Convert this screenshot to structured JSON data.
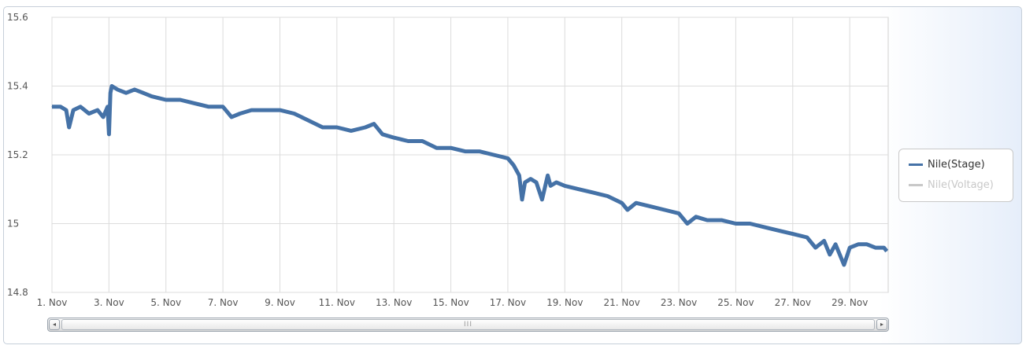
{
  "chart_data": {
    "type": "line",
    "ylim": [
      14.8,
      15.6
    ],
    "y_ticks": [
      "15.6",
      "15.4",
      "15.2",
      "15",
      "14.8"
    ],
    "y_tick_values": [
      15.6,
      15.4,
      15.2,
      15.0,
      14.8
    ],
    "x_ticks": [
      "1. Nov",
      "3. Nov",
      "5. Nov",
      "7. Nov",
      "9. Nov",
      "11. Nov",
      "13. Nov",
      "15. Nov",
      "17. Nov",
      "19. Nov",
      "21. Nov",
      "23. Nov",
      "25. Nov",
      "27. Nov",
      "29. Nov"
    ],
    "x_tick_days": [
      1,
      3,
      5,
      7,
      9,
      11,
      13,
      15,
      17,
      19,
      21,
      23,
      25,
      27,
      29
    ],
    "xlim_days": [
      1,
      30.35
    ],
    "grid": true,
    "legend_position": "right",
    "series": [
      {
        "name": "Nile(Stage)",
        "color": "#4572a7",
        "visible": true,
        "x_days": [
          1.0,
          1.3,
          1.5,
          1.6,
          1.75,
          2.0,
          2.3,
          2.6,
          2.8,
          2.95,
          3.0,
          3.05,
          3.1,
          3.3,
          3.6,
          3.9,
          4.2,
          4.5,
          5.0,
          5.5,
          6.0,
          6.5,
          7.0,
          7.3,
          7.6,
          8.0,
          8.5,
          9.0,
          9.5,
          10.0,
          10.5,
          11.0,
          11.5,
          12.0,
          12.3,
          12.6,
          13.0,
          13.5,
          14.0,
          14.5,
          15.0,
          15.5,
          16.0,
          16.5,
          17.0,
          17.2,
          17.4,
          17.5,
          17.6,
          17.8,
          18.0,
          18.2,
          18.4,
          18.5,
          18.7,
          19.0,
          19.5,
          20.0,
          20.5,
          21.0,
          21.2,
          21.5,
          22.0,
          22.5,
          23.0,
          23.3,
          23.6,
          24.0,
          24.5,
          25.0,
          25.5,
          26.0,
          26.5,
          27.0,
          27.5,
          27.8,
          28.1,
          28.3,
          28.5,
          28.8,
          29.0,
          29.3,
          29.6,
          29.9,
          30.2,
          30.3
        ],
        "values": [
          15.34,
          15.34,
          15.33,
          15.28,
          15.33,
          15.34,
          15.32,
          15.33,
          15.31,
          15.34,
          15.26,
          15.38,
          15.4,
          15.39,
          15.38,
          15.39,
          15.38,
          15.37,
          15.36,
          15.36,
          15.35,
          15.34,
          15.34,
          15.31,
          15.32,
          15.33,
          15.33,
          15.33,
          15.32,
          15.3,
          15.28,
          15.28,
          15.27,
          15.28,
          15.29,
          15.26,
          15.25,
          15.24,
          15.24,
          15.22,
          15.22,
          15.21,
          15.21,
          15.2,
          15.19,
          15.17,
          15.14,
          15.07,
          15.12,
          15.13,
          15.12,
          15.07,
          15.14,
          15.11,
          15.12,
          15.11,
          15.1,
          15.09,
          15.08,
          15.06,
          15.04,
          15.06,
          15.05,
          15.04,
          15.03,
          15.0,
          15.02,
          15.01,
          15.01,
          15.0,
          15.0,
          14.99,
          14.98,
          14.97,
          14.96,
          14.93,
          14.95,
          14.91,
          14.94,
          14.88,
          14.93,
          14.94,
          14.94,
          14.93,
          14.93,
          14.92
        ]
      },
      {
        "name": "Nile(Voltage)",
        "color": "#c8c8c8",
        "visible": false
      }
    ]
  },
  "scrollbar": {
    "left_arrow": "◂",
    "right_arrow": "▸",
    "grip": "III"
  }
}
